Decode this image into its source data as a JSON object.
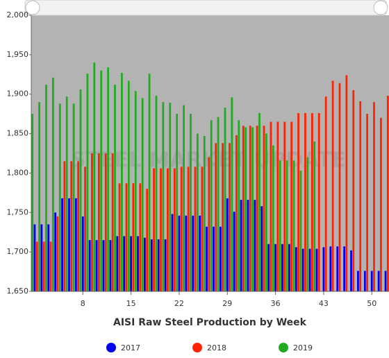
{
  "chart_data": {
    "type": "bar",
    "title": "AISI Raw Steel Production by Week",
    "watermark": "STEEL MARKET UPDATE",
    "x": [
      1,
      2,
      3,
      4,
      5,
      6,
      7,
      8,
      9,
      10,
      11,
      12,
      13,
      14,
      15,
      16,
      17,
      18,
      19,
      20,
      21,
      22,
      23,
      24,
      25,
      26,
      27,
      28,
      29,
      30,
      31,
      32,
      33,
      34,
      35,
      36,
      37,
      38,
      39,
      40,
      41,
      42,
      43,
      44,
      45,
      46,
      47,
      48,
      49,
      50,
      51,
      52
    ],
    "series": [
      {
        "name": "2017",
        "color": "#0000ee",
        "values": [
          1735,
          1735,
          1735,
          1750,
          1768,
          1768,
          1768,
          1745,
          1715,
          1715,
          1715,
          1715,
          1720,
          1720,
          1720,
          1720,
          1718,
          1716,
          1716,
          1716,
          1748,
          1746,
          1746,
          1746,
          1746,
          1732,
          1732,
          1732,
          1768,
          1751,
          1766,
          1766,
          1766,
          1758,
          1710,
          1710,
          1710,
          1710,
          1706,
          1704,
          1704,
          1704,
          1706,
          1707,
          1707,
          1707,
          1702,
          1676,
          1676,
          1676,
          1676,
          1676
        ]
      },
      {
        "name": "2018",
        "color": "#ff2200",
        "values": [
          1713,
          1713,
          1713,
          1745,
          1815,
          1815,
          1815,
          1808,
          1825,
          1825,
          1825,
          1825,
          1787,
          1787,
          1787,
          1787,
          1780,
          1806,
          1806,
          1806,
          1806,
          1808,
          1808,
          1808,
          1808,
          1820,
          1838,
          1838,
          1838,
          1848,
          1860,
          1860,
          1860,
          1860,
          1865,
          1865,
          1865,
          1865,
          1876,
          1876,
          1876,
          1876,
          1897,
          1917,
          1914,
          1924,
          1905,
          1891,
          1875,
          1890,
          1870,
          1898
        ]
      },
      {
        "name": "2019",
        "color": "#22aa22",
        "values": [
          1875,
          1890,
          1912,
          1921,
          1888,
          1897,
          1888,
          1906,
          1926,
          1940,
          1930,
          1934,
          1912,
          1927,
          1917,
          1904,
          1895,
          1926,
          1898,
          1890,
          1889,
          1875,
          1886,
          1875,
          1850,
          1847,
          1867,
          1871,
          1883,
          1896,
          1867,
          1858,
          1858,
          1876,
          1850,
          1835,
          1816,
          1816,
          1816,
          1803,
          1820,
          1840,
          null,
          null,
          null,
          null,
          null,
          null,
          null,
          null,
          null,
          null
        ]
      }
    ],
    "xlim": [
      0.5,
      52.5
    ],
    "xticks": [
      8,
      15,
      22,
      29,
      36,
      43,
      50
    ],
    "ylim": [
      1650,
      2000
    ],
    "yticks": [
      {
        "value": 1650,
        "label": "1,650"
      },
      {
        "value": 1700,
        "label": "1,700"
      },
      {
        "value": 1750,
        "label": "1,750"
      },
      {
        "value": 1800,
        "label": "1,800"
      },
      {
        "value": 1850,
        "label": "1,850"
      },
      {
        "value": 1900,
        "label": "1,900"
      },
      {
        "value": 1950,
        "label": "1,950"
      },
      {
        "value": 2000,
        "label": "2,000"
      }
    ],
    "legend": "bottom"
  }
}
